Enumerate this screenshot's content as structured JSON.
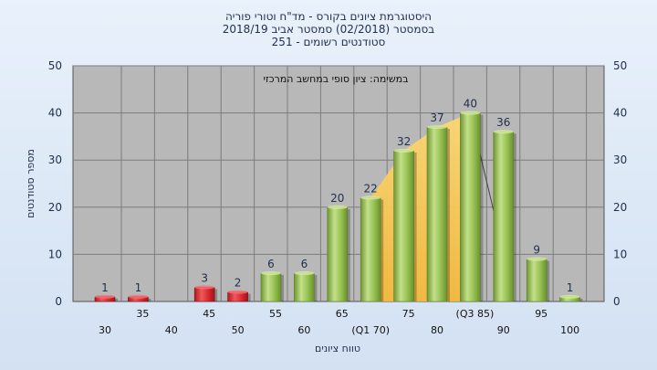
{
  "chart_data": {
    "type": "bar",
    "title_lines": [
      "היסטוגרמת ציונים בקורס - מד\"ח וטורי פוריה",
      "בסמסטר  (02/2018)  סמסטר אביב 2018/19",
      "סטודנטים רשומים - 251"
    ],
    "annotation": "במשימה: ציון סופי במחשב המרכזי",
    "xlabel": "טווח ציונים",
    "ylabel": "מספר סטודנטים",
    "ylim": [
      0,
      50
    ],
    "yticks": [
      0,
      10,
      20,
      30,
      40,
      50
    ],
    "grid": true,
    "categories": [
      "30",
      "35",
      "40",
      "45",
      "50",
      "55",
      "60",
      "65",
      "70",
      "75",
      "80",
      "85",
      "90",
      "95",
      "100"
    ],
    "values": [
      1,
      1,
      0,
      3,
      2,
      6,
      6,
      20,
      22,
      32,
      37,
      40,
      36,
      9,
      1
    ],
    "value_labels": [
      "1",
      "1",
      "",
      "3",
      "2",
      "6",
      "6",
      "20",
      "22",
      "32",
      "37",
      "40",
      "36",
      "9",
      "1"
    ],
    "xtick_labels": [
      "30",
      "35",
      "40",
      "45",
      "50",
      "55",
      "60",
      "65",
      "(Q1 70)",
      "75",
      "80",
      "(Q3 85)",
      "90",
      "95",
      "100"
    ],
    "fail_threshold": 55,
    "colors": {
      "fail_bar": "#d8282d",
      "pass_bar": "#8cb84a",
      "interquartile_band": "#f7c24a",
      "plot_background": "#b8b8b8",
      "grid": "#7d7d7d"
    }
  }
}
